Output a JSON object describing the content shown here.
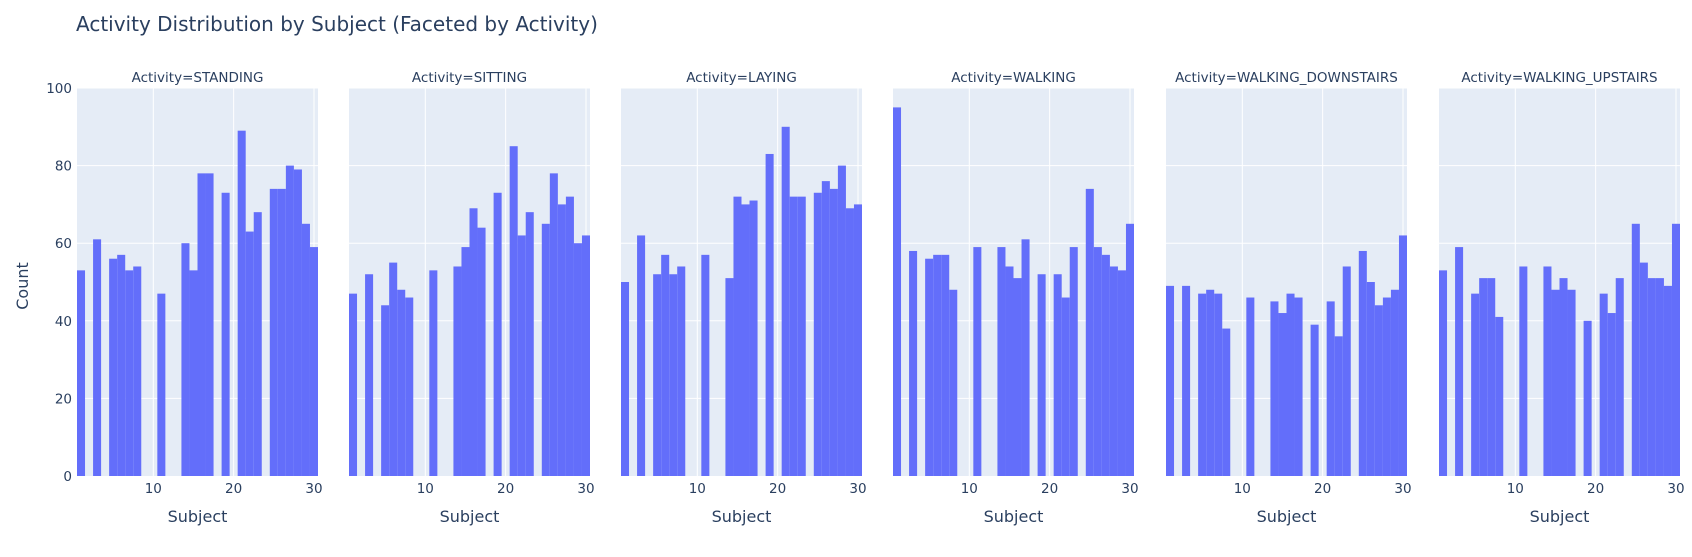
{
  "chart_data": {
    "type": "bar",
    "title": "Activity Distribution by Subject (Faceted by Activity)",
    "ylabel": "Count",
    "xlabel": "Subject",
    "ylim": [
      0,
      100
    ],
    "xlim": [
      0.5,
      30.5
    ],
    "yticks": [
      0,
      20,
      40,
      60,
      80,
      100
    ],
    "xticks": [
      10,
      20,
      30
    ],
    "grid": true,
    "bar_color": "#636efa",
    "plot_bg": "#e5ecf6",
    "x": [
      1,
      2,
      3,
      4,
      5,
      6,
      7,
      8,
      9,
      10,
      11,
      12,
      13,
      14,
      15,
      16,
      17,
      18,
      19,
      20,
      21,
      22,
      23,
      24,
      25,
      26,
      27,
      28,
      29,
      30
    ],
    "facets": [
      {
        "label": "Activity=STANDING",
        "values": [
          53,
          0,
          61,
          0,
          56,
          57,
          53,
          54,
          0,
          0,
          47,
          0,
          0,
          60,
          53,
          78,
          78,
          0,
          73,
          0,
          89,
          63,
          68,
          0,
          74,
          74,
          80,
          79,
          65,
          59
        ]
      },
      {
        "label": "Activity=SITTING",
        "values": [
          47,
          0,
          52,
          0,
          44,
          55,
          48,
          46,
          0,
          0,
          53,
          0,
          0,
          54,
          59,
          69,
          64,
          0,
          73,
          0,
          85,
          62,
          68,
          0,
          65,
          78,
          70,
          72,
          60,
          62
        ]
      },
      {
        "label": "Activity=LAYING",
        "values": [
          50,
          0,
          62,
          0,
          52,
          57,
          52,
          54,
          0,
          0,
          57,
          0,
          0,
          51,
          72,
          70,
          71,
          0,
          83,
          0,
          90,
          72,
          72,
          0,
          73,
          76,
          74,
          80,
          69,
          70
        ]
      },
      {
        "label": "Activity=WALKING",
        "values": [
          95,
          0,
          58,
          0,
          56,
          57,
          57,
          48,
          0,
          0,
          59,
          0,
          0,
          59,
          54,
          51,
          61,
          0,
          52,
          0,
          52,
          46,
          59,
          0,
          74,
          59,
          57,
          54,
          53,
          65
        ]
      },
      {
        "label": "Activity=WALKING_DOWNSTAIRS",
        "values": [
          49,
          0,
          49,
          0,
          47,
          48,
          47,
          38,
          0,
          0,
          46,
          0,
          0,
          45,
          42,
          47,
          46,
          0,
          39,
          0,
          45,
          36,
          54,
          0,
          58,
          50,
          44,
          46,
          48,
          62
        ]
      },
      {
        "label": "Activity=WALKING_UPSTAIRS",
        "values": [
          53,
          0,
          59,
          0,
          47,
          51,
          51,
          41,
          0,
          0,
          54,
          0,
          0,
          54,
          48,
          51,
          48,
          0,
          40,
          0,
          47,
          42,
          51,
          0,
          65,
          55,
          51,
          51,
          49,
          65
        ]
      }
    ]
  }
}
